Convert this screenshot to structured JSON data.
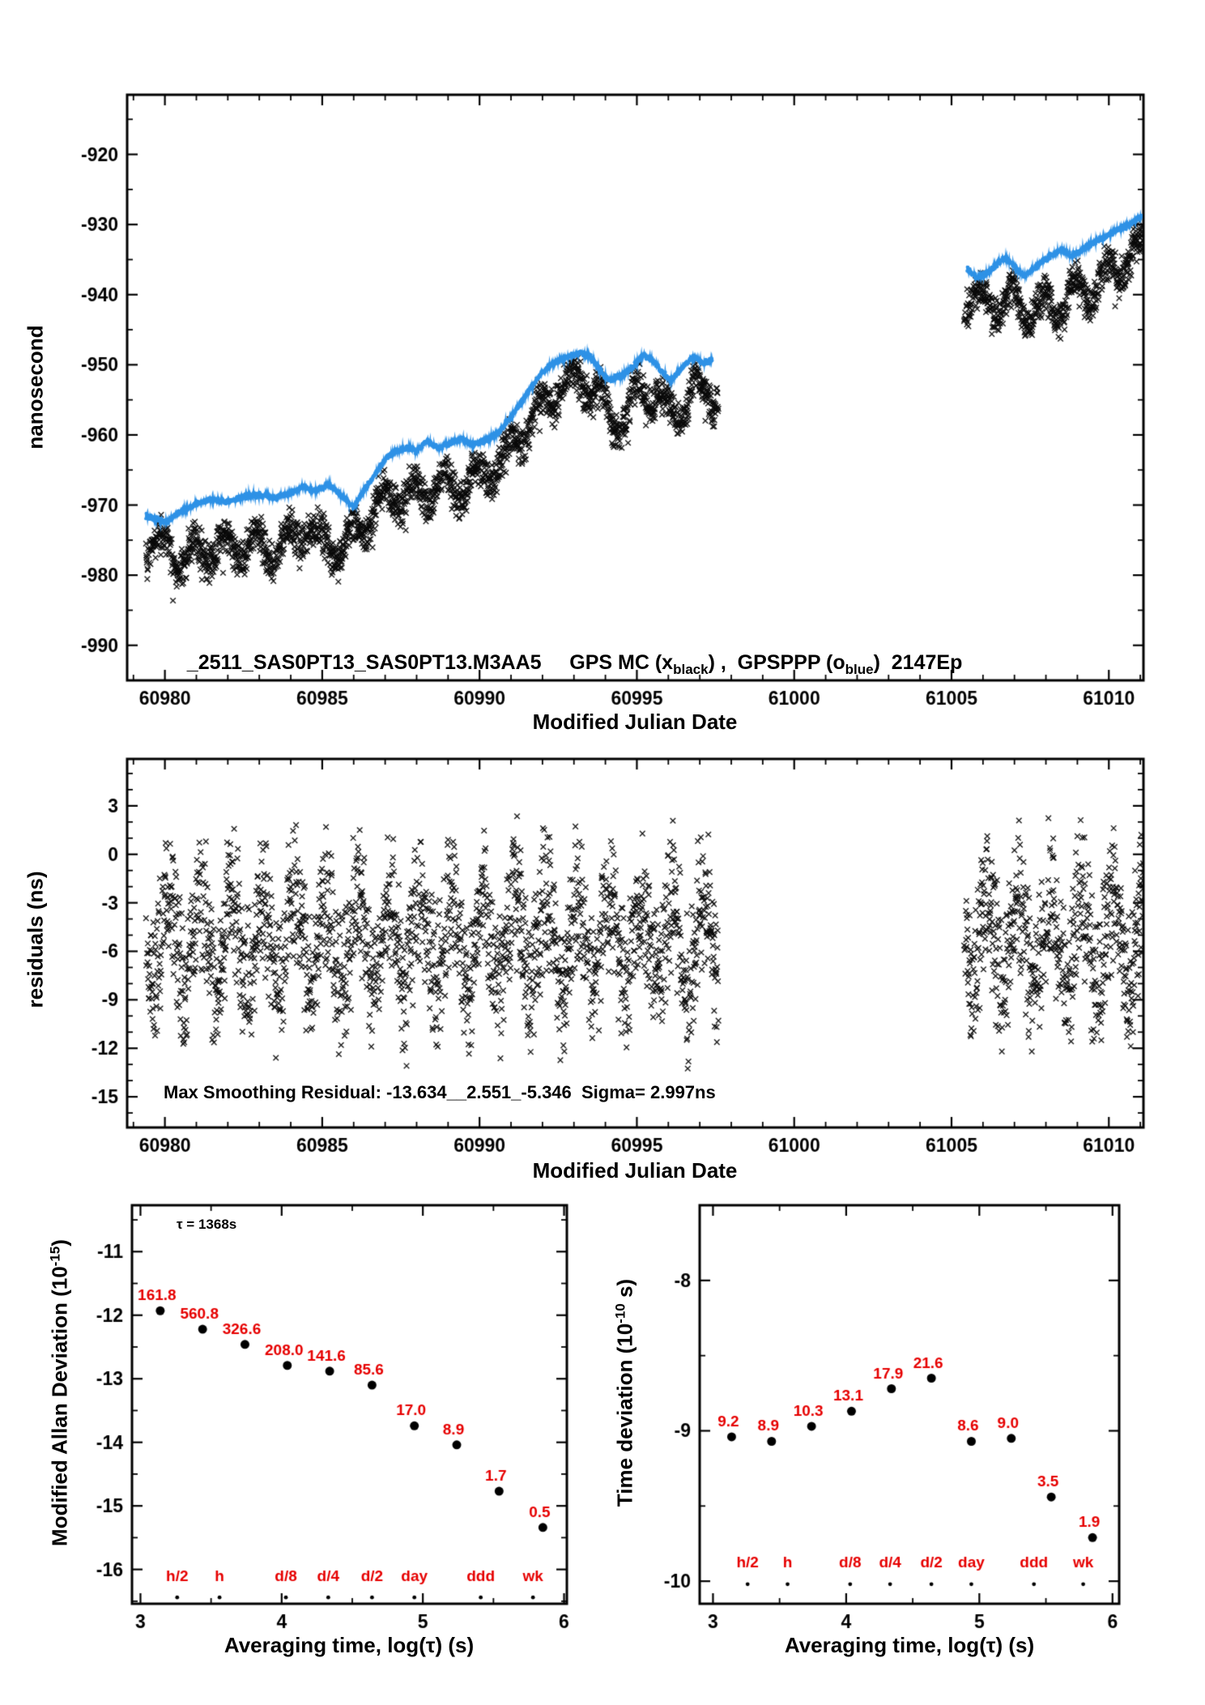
{
  "colors": {
    "black": "#000000",
    "blue": "#2f92e6",
    "red": "#e60000"
  },
  "chart_data": [
    {
      "id": "phase",
      "type": "scatter",
      "title_parts": [
        {
          "text": "_2511_SAS0PT13_SAS0PT13.M3AA5"
        },
        {
          "text": "     GPS MC (x"
        },
        {
          "text": "black",
          "sub": true
        },
        {
          "text": ") ,  GPSPPP (o"
        },
        {
          "text": "blue",
          "sub": true
        },
        {
          "text": ")  2147Ep"
        }
      ],
      "xlabel": "Modified Julian Date",
      "ylabel": "nanosecond",
      "xlim": [
        60978.8,
        61011.1
      ],
      "ylim": [
        -995,
        -911.5
      ],
      "xticks": [
        60980,
        60985,
        60990,
        60995,
        61000,
        61005,
        61010
      ],
      "yticks": [
        -920,
        -930,
        -940,
        -950,
        -960,
        -970,
        -980,
        -990
      ],
      "x_minor": 1,
      "y_minor": 5,
      "series": [
        {
          "name": "GPS MC",
          "marker": "x",
          "color": "black",
          "step": 0.008,
          "wave": 2.0,
          "noise": 2.2,
          "segments": [
            {
              "x0": 60979.4,
              "x1": 60997.6,
              "anchors": [
                [
                  60979.4,
                  -974.5
                ],
                [
                  60980,
                  -976.5
                ],
                [
                  60980.6,
                  -977.5
                ],
                [
                  60981.2,
                  -976.5
                ],
                [
                  60982,
                  -976
                ],
                [
                  60982.8,
                  -975.5
                ],
                [
                  60983.4,
                  -976.5
                ],
                [
                  60984,
                  -975
                ],
                [
                  60984.5,
                  -972.8
                ],
                [
                  60985,
                  -975.5
                ],
                [
                  60985.6,
                  -976.5
                ],
                [
                  60986.2,
                  -973
                ],
                [
                  60986.8,
                  -970
                ],
                [
                  60987.4,
                  -968.5
                ],
                [
                  60988,
                  -968.5
                ],
                [
                  60988.6,
                  -967.5
                ],
                [
                  60989.2,
                  -967.5
                ],
                [
                  60989.8,
                  -966.5
                ],
                [
                  60990.4,
                  -965
                ],
                [
                  60991,
                  -962
                ],
                [
                  60991.6,
                  -958
                ],
                [
                  60992.2,
                  -955
                ],
                [
                  60992.8,
                  -952.5
                ],
                [
                  60993.3,
                  -952
                ],
                [
                  60993.8,
                  -954
                ],
                [
                  60994.2,
                  -958
                ],
                [
                  60994.7,
                  -957
                ],
                [
                  60995.1,
                  -953.5
                ],
                [
                  60995.6,
                  -954
                ],
                [
                  60996,
                  -957
                ],
                [
                  60996.5,
                  -955.5
                ],
                [
                  60997,
                  -953.5
                ],
                [
                  60997.6,
                  -954.5
                ]
              ]
            },
            {
              "x0": 61005.4,
              "x1": 61011.1,
              "anchors": [
                [
                  61005.4,
                  -940.5
                ],
                [
                  61006,
                  -941
                ],
                [
                  61006.5,
                  -941.5
                ],
                [
                  61007,
                  -941
                ],
                [
                  61007.5,
                  -942.5
                ],
                [
                  61008,
                  -941.5
                ],
                [
                  61008.5,
                  -941.5
                ],
                [
                  61009,
                  -939.5
                ],
                [
                  61009.5,
                  -939.5
                ],
                [
                  61010,
                  -937
                ],
                [
                  61010.5,
                  -935.5
                ],
                [
                  61011.1,
                  -934
                ]
              ]
            }
          ]
        },
        {
          "name": "GPSPPP",
          "marker": "o",
          "color": "blue",
          "line": true,
          "step": 0.01,
          "noise": 0.45,
          "segments": [
            {
              "x0": 60979.4,
              "x1": 60997.4,
              "anchors": [
                [
                  60979.4,
                  -971.5
                ],
                [
                  60980,
                  -972.5
                ],
                [
                  60980.5,
                  -971
                ],
                [
                  60981,
                  -969.8
                ],
                [
                  60981.5,
                  -969.2
                ],
                [
                  60982,
                  -969.6
                ],
                [
                  60982.5,
                  -968.8
                ],
                [
                  60983,
                  -968.5
                ],
                [
                  60983.5,
                  -969
                ],
                [
                  60984,
                  -968.3
                ],
                [
                  60984.4,
                  -967.4
                ],
                [
                  60984.8,
                  -968
                ],
                [
                  60985.2,
                  -967
                ],
                [
                  60985.6,
                  -968.6
                ],
                [
                  60986,
                  -970.3
                ],
                [
                  60986.3,
                  -968
                ],
                [
                  60986.7,
                  -965.5
                ],
                [
                  60987,
                  -963.5
                ],
                [
                  60987.3,
                  -962.3
                ],
                [
                  60987.7,
                  -961.8
                ],
                [
                  60988,
                  -962.3
                ],
                [
                  60988.3,
                  -960.8
                ],
                [
                  60988.7,
                  -961.8
                ],
                [
                  60989,
                  -961.3
                ],
                [
                  60989.4,
                  -960.6
                ],
                [
                  60989.8,
                  -961.4
                ],
                [
                  60990.2,
                  -960.8
                ],
                [
                  60990.6,
                  -959.6
                ],
                [
                  60991,
                  -957.4
                ],
                [
                  60991.3,
                  -955.5
                ],
                [
                  60991.6,
                  -953.4
                ],
                [
                  60992,
                  -951
                ],
                [
                  60992.4,
                  -949.6
                ],
                [
                  60992.8,
                  -948.9
                ],
                [
                  60993.2,
                  -948.3
                ],
                [
                  60993.5,
                  -948.8
                ],
                [
                  60993.8,
                  -950.5
                ],
                [
                  60994.1,
                  -952.2
                ],
                [
                  60994.5,
                  -951.6
                ],
                [
                  60994.9,
                  -950.2
                ],
                [
                  60995.2,
                  -948.6
                ],
                [
                  60995.5,
                  -949.3
                ],
                [
                  60995.8,
                  -951
                ],
                [
                  60996.1,
                  -952.3
                ],
                [
                  60996.4,
                  -950.6
                ],
                [
                  60996.8,
                  -948.8
                ],
                [
                  60997.1,
                  -949.8
                ],
                [
                  60997.4,
                  -949.2
                ]
              ]
            },
            {
              "x0": 61005.5,
              "x1": 61011.05,
              "anchors": [
                [
                  61005.5,
                  -936.3
                ],
                [
                  61005.8,
                  -937.6
                ],
                [
                  61006.1,
                  -937
                ],
                [
                  61006.4,
                  -935.8
                ],
                [
                  61006.7,
                  -934.7
                ],
                [
                  61007,
                  -936
                ],
                [
                  61007.3,
                  -937.2
                ],
                [
                  61007.6,
                  -936.4
                ],
                [
                  61007.9,
                  -935.2
                ],
                [
                  61008.2,
                  -934.3
                ],
                [
                  61008.5,
                  -933.6
                ],
                [
                  61008.8,
                  -934.4
                ],
                [
                  61009.1,
                  -933.8
                ],
                [
                  61009.4,
                  -932.8
                ],
                [
                  61009.7,
                  -932.2
                ],
                [
                  61010,
                  -931.4
                ],
                [
                  61010.3,
                  -930.6
                ],
                [
                  61010.6,
                  -930.2
                ],
                [
                  61010.9,
                  -929.2
                ],
                [
                  61011.05,
                  -928.8
                ]
              ]
            }
          ]
        }
      ]
    },
    {
      "id": "residuals",
      "type": "scatter",
      "xlabel": "Modified Julian Date",
      "ylabel": "residuals (ns)",
      "annotation": "Max Smoothing Residual: -13.634__2.551_-5.346  Sigma= 2.997ns",
      "xlim": [
        60978.8,
        61011.1
      ],
      "ylim": [
        -16.9,
        5.9
      ],
      "xticks": [
        60980,
        60985,
        60990,
        60995,
        61000,
        61005,
        61010
      ],
      "yticks": [
        3,
        0,
        -3,
        -6,
        -9,
        -12,
        -15
      ],
      "x_minor": 1,
      "y_minor": 1,
      "series": [
        {
          "name": "residuals",
          "marker": "x",
          "color": "black",
          "step": 0.008,
          "mean": -5.3,
          "wave": 2.8,
          "noise": 3.3,
          "clip": [
            -13.5,
            2.6
          ],
          "ranges": [
            [
              60979.4,
              60997.6
            ],
            [
              61005.4,
              61011.1
            ]
          ]
        }
      ]
    },
    {
      "id": "mdev",
      "type": "scatter",
      "xlabel": "Averaging time, log(τ) (s)",
      "ylabel_parts": [
        {
          "text": "Modified Allan Deviation (10"
        },
        {
          "text": "-15",
          "sup": true
        },
        {
          "text": ")"
        }
      ],
      "annotation": "τ = 1368s",
      "xlim": [
        2.94,
        6.02
      ],
      "ylim": [
        -16.54,
        -10.27
      ],
      "xticks": [
        3,
        4,
        5,
        6
      ],
      "yticks": [
        -11,
        -12,
        -13,
        -14,
        -15,
        -16
      ],
      "x_minor": 0.5,
      "y_minor": 0.5,
      "points": {
        "x": [
          3.14,
          3.44,
          3.74,
          4.04,
          4.34,
          4.64,
          4.94,
          5.24,
          5.54,
          5.85
        ],
        "y": [
          -11.93,
          -12.22,
          -12.46,
          -12.79,
          -12.88,
          -13.1,
          -13.74,
          -14.04,
          -14.77,
          -15.34
        ],
        "labels": [
          "161.8",
          "560.8",
          "326.6",
          "208.0",
          "141.6",
          "85.6",
          "17.0",
          "8.9",
          "1.7",
          "0.5"
        ]
      },
      "tau_markers": {
        "labels": [
          "h/2",
          "h",
          "d/8",
          "d/4",
          "d/2",
          "day",
          "ddd",
          "wk"
        ],
        "x": [
          3.26,
          3.56,
          4.03,
          4.33,
          4.64,
          4.94,
          5.41,
          5.78
        ],
        "dot_y": -16.44,
        "label_y": -16.18
      }
    },
    {
      "id": "tdev",
      "type": "scatter",
      "xlabel": "Averaging time, log(τ) (s)",
      "ylabel_parts": [
        {
          "text": "Time deviation (10"
        },
        {
          "text": "-10",
          "sup": true
        },
        {
          "text": " s)"
        }
      ],
      "xlim": [
        2.9,
        6.05
      ],
      "ylim": [
        -10.15,
        -7.5
      ],
      "xticks": [
        3,
        4,
        5,
        6
      ],
      "yticks": [
        -8,
        -9,
        -10
      ],
      "x_minor": 0.5,
      "y_minor": 0.5,
      "points": {
        "x": [
          3.14,
          3.44,
          3.74,
          4.04,
          4.34,
          4.64,
          4.94,
          5.24,
          5.54,
          5.85
        ],
        "y": [
          -9.04,
          -9.07,
          -8.97,
          -8.87,
          -8.72,
          -8.65,
          -9.07,
          -9.05,
          -9.44,
          -9.71
        ],
        "labels": [
          "9.2",
          "8.9",
          "10.3",
          "13.1",
          "17.9",
          "21.6",
          "8.6",
          "9.0",
          "3.5",
          "1.9"
        ]
      },
      "tau_markers": {
        "labels": [
          "h/2",
          "h",
          "d/8",
          "d/4",
          "d/2",
          "day",
          "ddd",
          "wk"
        ],
        "x": [
          3.26,
          3.56,
          4.03,
          4.33,
          4.64,
          4.94,
          5.41,
          5.78
        ],
        "dot_y": -10.02,
        "label_y": -9.91
      }
    }
  ]
}
